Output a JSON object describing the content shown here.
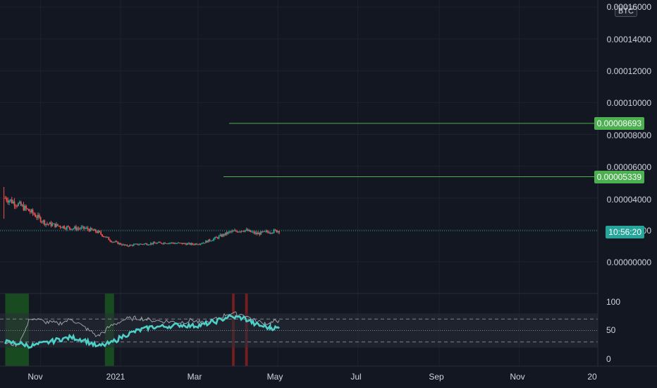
{
  "chart": {
    "currency": "BTC",
    "price_axis": {
      "ticks": [
        "0.00016000",
        "0.00014000",
        "0.00012000",
        "0.00010000",
        "0.00008000",
        "0.00006000",
        "0.00004000",
        "0.00002000",
        "0.00000000"
      ]
    },
    "indicator_axis": {
      "ticks": [
        "100",
        "50",
        "0"
      ]
    },
    "time_axis": {
      "ticks": [
        "Nov",
        "2021",
        "Mar",
        "May",
        "Jul",
        "Sep",
        "Nov",
        "20"
      ]
    },
    "price_tags": {
      "level_1": "0.00008693",
      "level_2": "0.00005339",
      "countdown": "10:56:20"
    },
    "colors": {
      "background": "#131722",
      "up": "#26a69a",
      "down": "#ef5350",
      "level_line": "#4caf50",
      "rsi_fast": "#4dd0c8",
      "rsi_slow": "#b2b5be",
      "oversold_zone": "#1b5e20",
      "overbought_zone": "#8b1e1e"
    }
  },
  "chart_data": {
    "type": "candlestick",
    "price_series": {
      "name": "",
      "x": [
        "2020-10-05",
        "2020-10-15",
        "2020-10-25",
        "2020-11-05",
        "2020-11-15",
        "2020-11-25",
        "2020-12-05",
        "2020-12-15",
        "2020-12-25",
        "2021-01-05",
        "2021-01-15",
        "2021-01-25",
        "2021-02-05",
        "2021-02-15",
        "2021-02-25",
        "2021-03-05",
        "2021-03-15",
        "2021-03-25",
        "2021-04-05",
        "2021-04-15",
        "2021-04-25",
        "2021-05-02"
      ],
      "values": [
        4e-05,
        3.6e-05,
        3.1e-05,
        2.4e-05,
        2.25e-05,
        2.1e-05,
        2.1e-05,
        1.85e-05,
        1.3e-05,
        1e-05,
        1.1e-05,
        1.15e-05,
        1.2e-05,
        1.15e-05,
        1.1e-05,
        1.2e-05,
        1.5e-05,
        1.85e-05,
        2e-05,
        1.75e-05,
        1.9e-05,
        1.95e-05
      ]
    },
    "rsi_series": [
      {
        "name": "",
        "values": [
          30,
          28,
          23,
          28,
          34,
          38,
          33,
          22,
          28,
          42,
          50,
          56,
          57,
          60,
          58,
          60,
          66,
          74,
          72,
          60,
          55,
          54
        ]
      },
      {
        "name": "",
        "values": [
          28,
          25,
          72,
          65,
          62,
          70,
          55,
          40,
          58,
          70,
          72,
          68,
          66,
          64,
          68,
          62,
          70,
          80,
          78,
          66,
          62,
          68
        ]
      }
    ],
    "price_ylim": [
      0,
      0.00016
    ],
    "rsi_ylim": [
      0,
      100
    ],
    "rsi_bands": [
      30,
      50,
      70
    ],
    "horizontal_levels": [
      8.693e-05,
      5.339e-05
    ],
    "xlim": [
      "2020-10-01",
      "2021-12-31"
    ]
  }
}
